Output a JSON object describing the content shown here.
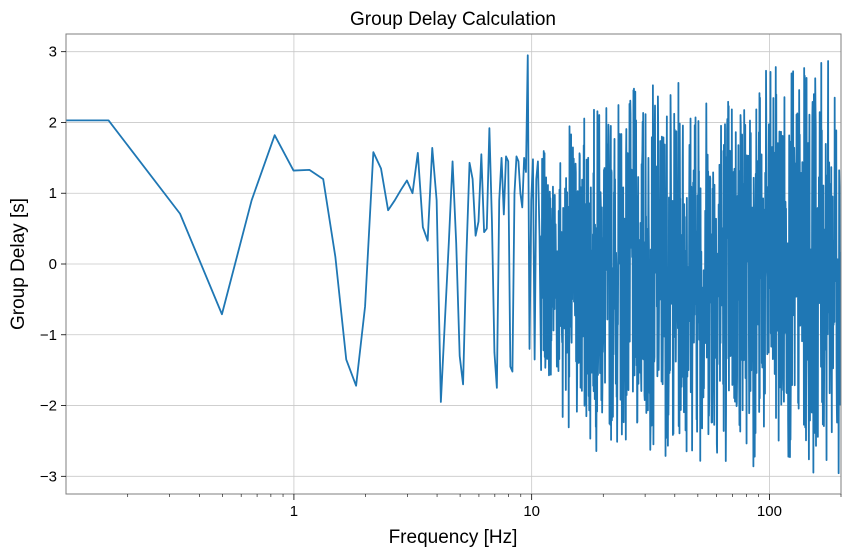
{
  "chart_data": {
    "type": "line",
    "title": "Group Delay Calculation",
    "xlabel": "Frequency [Hz]",
    "ylabel": "Group Delay [s]",
    "xscale": "log",
    "xlim": [
      0.11,
      200
    ],
    "ylim": [
      -3.25,
      3.25
    ],
    "grid": true,
    "line_color": "#1f77b4",
    "x_ticks": [
      {
        "value": 1,
        "label": "1"
      },
      {
        "value": 10,
        "label": "10"
      },
      {
        "value": 100,
        "label": "100"
      }
    ],
    "y_ticks": [
      {
        "value": 3,
        "label": "3"
      },
      {
        "value": 2,
        "label": "2"
      },
      {
        "value": 1,
        "label": "1"
      },
      {
        "value": 0,
        "label": "0"
      },
      {
        "value": -1,
        "label": "−1"
      },
      {
        "value": -2,
        "label": "−2"
      },
      {
        "value": -3,
        "label": "−3"
      }
    ],
    "series": [
      {
        "name": "group delay",
        "x": [
          0.11,
          0.166,
          0.332,
          0.498,
          0.664,
          0.83,
          0.996,
          1.162,
          1.328,
          1.494,
          1.66,
          1.826,
          1.992,
          2.158,
          2.324,
          2.49,
          2.656,
          2.822,
          2.988,
          3.154,
          3.32,
          3.486,
          3.652,
          3.818,
          3.984,
          4.15,
          4.316,
          4.482,
          4.648,
          4.814,
          4.98,
          5.146,
          5.312,
          5.478,
          5.644,
          5.81,
          5.976,
          6.142,
          6.308,
          6.474,
          6.64,
          6.806,
          6.972,
          7.138,
          7.304,
          7.47,
          7.636,
          7.802,
          7.968,
          8.134,
          8.3,
          8.466,
          8.632,
          8.798,
          8.964,
          9.13,
          9.296,
          9.462,
          9.628,
          9.794,
          9.96,
          10.126,
          10.292,
          10.458,
          10.624,
          10.79,
          10.956
        ],
        "y": [
          2.03,
          2.03,
          0.71,
          -0.71,
          0.9,
          1.82,
          1.32,
          1.33,
          1.2,
          0.1,
          -1.35,
          -1.72,
          -0.6,
          1.58,
          1.35,
          0.76,
          0.9,
          1.05,
          1.18,
          1.0,
          1.57,
          0.52,
          0.33,
          1.64,
          0.9,
          -1.95,
          -0.8,
          0.3,
          1.45,
          0.3,
          -1.3,
          -1.7,
          0.1,
          1.43,
          1.2,
          0.4,
          0.6,
          1.55,
          0.45,
          0.5,
          1.92,
          0.6,
          -1.25,
          -1.75,
          0.9,
          1.5,
          0.7,
          1.52,
          1.45,
          -1.45,
          -1.52,
          1.0,
          1.52,
          1.45,
          1.0,
          0.8,
          1.5,
          1.3,
          2.95,
          -1.2,
          0.9,
          1.48,
          -1.35,
          1.2,
          1.45,
          0.4,
          -1.5
        ]
      }
    ],
    "dense_region": {
      "x_start": 10.956,
      "x_end": 200,
      "seed": 7,
      "samples": 1140,
      "band": [
        {
          "x": 11,
          "lo": -1.6,
          "hi": 1.6
        },
        {
          "x": 16,
          "lo": -2.65,
          "hi": 2.27
        },
        {
          "x": 30,
          "lo": -2.7,
          "hi": 2.6
        },
        {
          "x": 80,
          "lo": -2.9,
          "hi": 2.85
        },
        {
          "x": 200,
          "lo": -2.97,
          "hi": 2.93
        }
      ]
    }
  }
}
